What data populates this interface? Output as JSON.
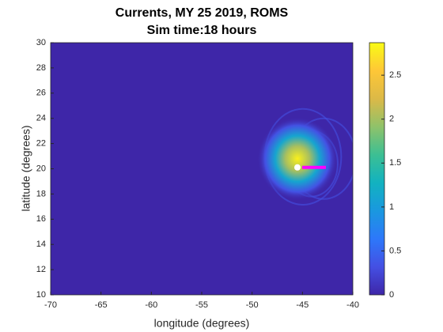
{
  "chart_data": {
    "type": "heatmap",
    "title": "Currents, MY 25 2019, ROMS",
    "subtitle": "Sim time:18 hours",
    "xlabel": "longitude (degrees)",
    "ylabel": "latitude (degrees)",
    "xlim": [
      -70,
      -40
    ],
    "xticks": [
      -70,
      -65,
      -60,
      -55,
      -50,
      -45,
      -40
    ],
    "ylim": [
      10,
      30
    ],
    "yticks": [
      10,
      12,
      14,
      16,
      18,
      20,
      22,
      24,
      26,
      28,
      30
    ],
    "colormap": [
      "#3e26a8",
      "#4450e3",
      "#2d78fa",
      "#1a98df",
      "#12b2c0",
      "#3cbf93",
      "#8fc26a",
      "#dcb947",
      "#fec737",
      "#f9fb15"
    ],
    "clim": [
      0,
      2.87
    ],
    "cticks": [
      0,
      0.5,
      1,
      1.5,
      2,
      2.5
    ],
    "peak": {
      "x": -45.5,
      "y": 20.8,
      "value": 2.8
    }
  }
}
